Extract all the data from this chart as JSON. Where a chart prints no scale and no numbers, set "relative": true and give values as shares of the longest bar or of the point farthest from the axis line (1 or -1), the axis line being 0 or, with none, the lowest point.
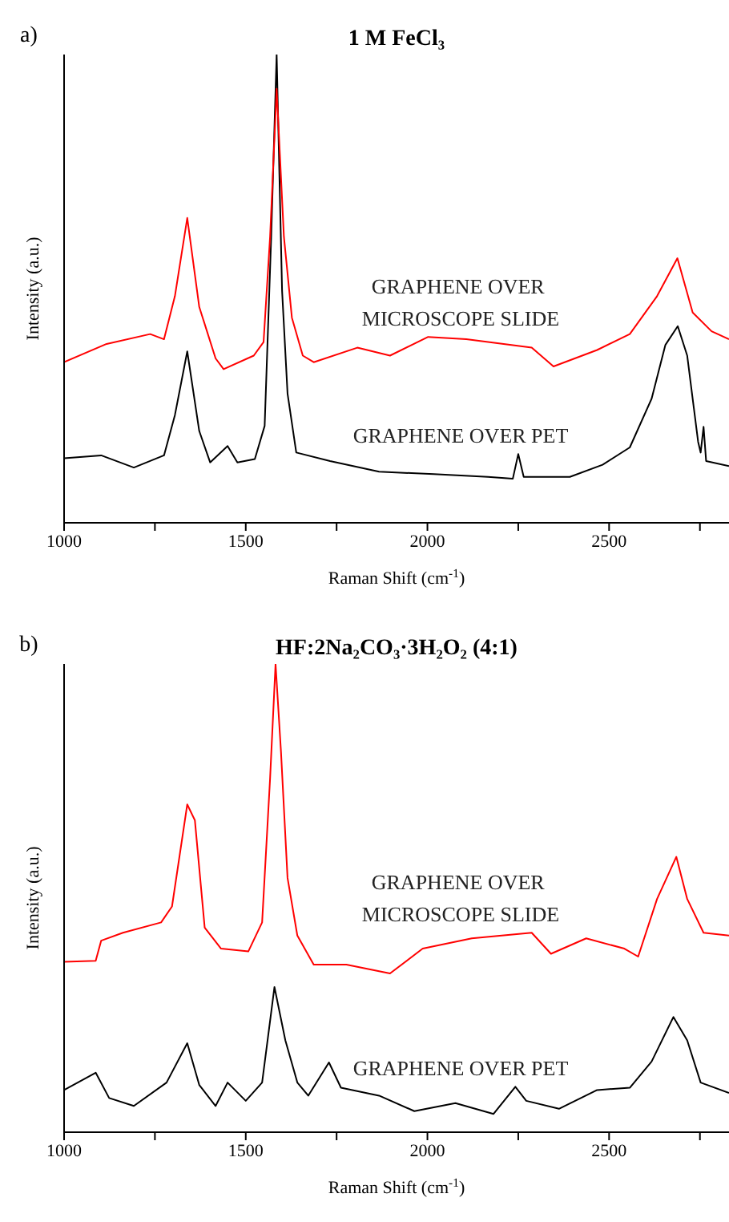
{
  "chart_data": [
    {
      "type": "line",
      "title": "1 M FeCl₃",
      "annotations": [
        "a)"
      ],
      "xlabel": "Raman Shift (cm$^{-1}$)",
      "ylabel": "Intensity (a.u.)",
      "relative": true,
      "xlim": [
        1000,
        2830
      ],
      "xticks": [
        1000,
        {
          "value": 1250,
          "label": null
        },
        1500,
        {
          "value": 1750,
          "label": null
        },
        2000,
        {
          "value": 2250,
          "label": null
        },
        2500,
        {
          "value": 2750,
          "label": null
        }
      ],
      "series": [
        {
          "name": "GRAPHENE OVER MICROSCOPE SLIDE",
          "color": "#ff0000",
          "x": [
            1000,
            1117,
            1237,
            1275,
            1305,
            1339,
            1372,
            1417,
            1439,
            1522,
            1549,
            1567,
            1585,
            1605,
            1627,
            1657,
            1687,
            1807,
            1897,
            2002,
            2107,
            2287,
            2347,
            2467,
            2557,
            2632,
            2688,
            2730,
            2782,
            2830
          ],
          "values": [
            0.343,
            0.382,
            0.403,
            0.392,
            0.484,
            0.651,
            0.461,
            0.351,
            0.328,
            0.357,
            0.386,
            0.611,
            0.927,
            0.611,
            0.438,
            0.357,
            0.343,
            0.374,
            0.357,
            0.397,
            0.392,
            0.374,
            0.334,
            0.369,
            0.403,
            0.484,
            0.565,
            0.449,
            0.409,
            0.392
          ]
        },
        {
          "name": "GRAPHENE OVER PET",
          "color": "#000000",
          "x": [
            1000,
            1102,
            1192,
            1275,
            1305,
            1339,
            1372,
            1402,
            1450,
            1477,
            1525,
            1552,
            1570,
            1585,
            1600,
            1615,
            1639,
            1732,
            1867,
            2017,
            2167,
            2235,
            2250,
            2265,
            2392,
            2482,
            2557,
            2617,
            2655,
            2689,
            2715,
            2745,
            2752,
            2760,
            2767,
            2830
          ],
          "values": [
            0.138,
            0.144,
            0.118,
            0.144,
            0.23,
            0.366,
            0.196,
            0.129,
            0.164,
            0.129,
            0.136,
            0.207,
            0.611,
            1,
            0.495,
            0.276,
            0.15,
            0.132,
            0.109,
            0.104,
            0.098,
            0.094,
            0.147,
            0.098,
            0.098,
            0.124,
            0.161,
            0.265,
            0.38,
            0.42,
            0.357,
            0.173,
            0.15,
            0.205,
            0.132,
            0.121
          ]
        }
      ]
    },
    {
      "type": "line",
      "title": "HF:2Na₂CO₃·3H₂O₂ (4:1)",
      "annotations": [
        "b)"
      ],
      "xlabel": "Raman Shift (cm$^{-1}$)",
      "ylabel": "Intensity (a.u.)",
      "relative": true,
      "xlim": [
        1000,
        2830
      ],
      "xticks": [
        1000,
        {
          "value": 1250,
          "label": null
        },
        1500,
        {
          "value": 1750,
          "label": null
        },
        2000,
        {
          "value": 2250,
          "label": null
        },
        2500,
        {
          "value": 2750,
          "label": null
        }
      ],
      "series": [
        {
          "name": "GRAPHENE OVER MICROSCOPE SLIDE",
          "color": "#ff0000",
          "x": [
            1000,
            1087,
            1102,
            1162,
            1267,
            1297,
            1339,
            1360,
            1387,
            1432,
            1507,
            1545,
            1567,
            1582,
            1597,
            1615,
            1642,
            1687,
            1777,
            1897,
            1987,
            2122,
            2287,
            2340,
            2437,
            2542,
            2580,
            2632,
            2685,
            2715,
            2760,
            2830
          ],
          "values": [
            0.364,
            0.366,
            0.409,
            0.426,
            0.448,
            0.482,
            0.7,
            0.666,
            0.437,
            0.392,
            0.386,
            0.448,
            0.756,
            1,
            0.812,
            0.543,
            0.42,
            0.358,
            0.358,
            0.339,
            0.392,
            0.414,
            0.426,
            0.381,
            0.414,
            0.392,
            0.375,
            0.498,
            0.588,
            0.498,
            0.426,
            0.42
          ]
        },
        {
          "name": "GRAPHENE OVER PET",
          "color": "#000000",
          "x": [
            1000,
            1087,
            1124,
            1192,
            1282,
            1339,
            1372,
            1417,
            1450,
            1500,
            1545,
            1579,
            1609,
            1642,
            1672,
            1729,
            1762,
            1867,
            1964,
            2077,
            2182,
            2242,
            2272,
            2362,
            2467,
            2557,
            2617,
            2677,
            2715,
            2752,
            2830
          ],
          "values": [
            0.09,
            0.127,
            0.073,
            0.056,
            0.106,
            0.19,
            0.101,
            0.056,
            0.106,
            0.067,
            0.106,
            0.31,
            0.196,
            0.106,
            0.078,
            0.149,
            0.095,
            0.078,
            0.045,
            0.062,
            0.039,
            0.097,
            0.067,
            0.05,
            0.09,
            0.095,
            0.151,
            0.246,
            0.196,
            0.106,
            0.084
          ]
        }
      ]
    }
  ]
}
